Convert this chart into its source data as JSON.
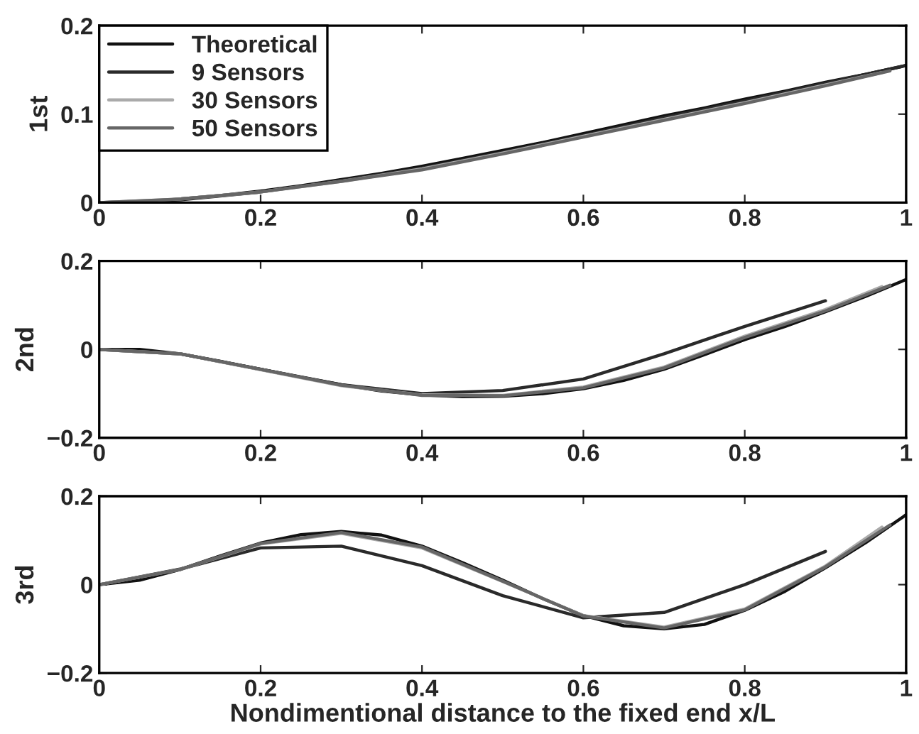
{
  "chart_data": [
    {
      "type": "line",
      "ylabel": "1st",
      "xlim": [
        0,
        1
      ],
      "ylim": [
        0,
        0.2
      ],
      "xticks": [
        0,
        0.2,
        0.4,
        0.6,
        0.8,
        1
      ],
      "yticks": [
        0,
        0.1,
        0.2
      ],
      "legend": "top left",
      "grid": false,
      "series": [
        {
          "name": "Theoretical",
          "color": "#111111",
          "x": [
            0,
            0.05,
            0.1,
            0.15,
            0.2,
            0.25,
            0.3,
            0.35,
            0.4,
            0.45,
            0.5,
            0.55,
            0.6,
            0.65,
            0.7,
            0.75,
            0.8,
            0.85,
            0.9,
            0.95,
            1
          ],
          "values": [
            0,
            0.001,
            0.004,
            0.008,
            0.013,
            0.019,
            0.026,
            0.033,
            0.041,
            0.05,
            0.059,
            0.068,
            0.078,
            0.088,
            0.098,
            0.107,
            0.117,
            0.126,
            0.136,
            0.145,
            0.155
          ]
        },
        {
          "name": "9 Sensors",
          "color": "#2a2a2a",
          "x": [
            0,
            0.1,
            0.2,
            0.3,
            0.4,
            0.5,
            0.6,
            0.7,
            0.8,
            0.9,
            1
          ],
          "values": [
            0,
            0.003,
            0.012,
            0.025,
            0.039,
            0.057,
            0.076,
            0.096,
            0.115,
            0.135,
            0.155
          ]
        },
        {
          "name": "30 Sensors",
          "color": "#aaaaaa",
          "x": [
            0,
            0.1,
            0.2,
            0.3,
            0.4,
            0.5,
            0.6,
            0.7,
            0.8,
            0.9,
            0.97
          ],
          "values": [
            0,
            0.004,
            0.012,
            0.024,
            0.038,
            0.056,
            0.075,
            0.094,
            0.113,
            0.133,
            0.147
          ]
        },
        {
          "name": "50 Sensors",
          "color": "#666666",
          "x": [
            0,
            0.1,
            0.2,
            0.3,
            0.4,
            0.5,
            0.6,
            0.7,
            0.8,
            0.9,
            0.98
          ],
          "values": [
            0,
            0.004,
            0.012,
            0.024,
            0.037,
            0.055,
            0.074,
            0.093,
            0.112,
            0.132,
            0.149
          ]
        }
      ]
    },
    {
      "type": "line",
      "ylabel": "2nd",
      "xlim": [
        0,
        1
      ],
      "ylim": [
        -0.2,
        0.2
      ],
      "xticks": [
        0,
        0.2,
        0.4,
        0.6,
        0.8,
        1
      ],
      "yticks": [
        {
          "value": -0.2,
          "label": "−0.2"
        },
        0,
        0.2
      ],
      "grid": false,
      "series": [
        {
          "color": "#111111",
          "x": [
            0,
            0.05,
            0.1,
            0.15,
            0.2,
            0.25,
            0.3,
            0.35,
            0.4,
            0.45,
            0.5,
            0.55,
            0.6,
            0.65,
            0.7,
            0.75,
            0.8,
            0.85,
            0.9,
            0.95,
            1
          ],
          "values": [
            0,
            0,
            -0.01,
            -0.027,
            -0.045,
            -0.063,
            -0.08,
            -0.094,
            -0.103,
            -0.107,
            -0.106,
            -0.1,
            -0.089,
            -0.07,
            -0.045,
            -0.012,
            0.022,
            0.052,
            0.085,
            0.12,
            0.158
          ]
        },
        {
          "color": "#2a2a2a",
          "x": [
            0,
            0.1,
            0.2,
            0.3,
            0.4,
            0.5,
            0.6,
            0.7,
            0.8,
            0.9
          ],
          "values": [
            0,
            -0.01,
            -0.045,
            -0.08,
            -0.1,
            -0.093,
            -0.067,
            -0.01,
            0.052,
            0.11
          ]
        },
        {
          "color": "#aaaaaa",
          "x": [
            0,
            0.1,
            0.2,
            0.3,
            0.4,
            0.5,
            0.6,
            0.7,
            0.8,
            0.9,
            0.97
          ],
          "values": [
            0,
            -0.01,
            -0.046,
            -0.082,
            -0.103,
            -0.104,
            -0.085,
            -0.04,
            0.03,
            0.09,
            0.142
          ]
        },
        {
          "color": "#666666",
          "x": [
            0,
            0.1,
            0.2,
            0.3,
            0.4,
            0.5,
            0.6,
            0.7,
            0.8,
            0.9,
            0.98
          ],
          "values": [
            0,
            -0.01,
            -0.045,
            -0.081,
            -0.104,
            -0.105,
            -0.087,
            -0.042,
            0.027,
            0.087,
            0.145
          ]
        }
      ]
    },
    {
      "type": "line",
      "ylabel": "3rd",
      "xlabel": "Nondimentional distance to the fixed end x/L",
      "xlim": [
        0,
        1
      ],
      "ylim": [
        -0.2,
        0.2
      ],
      "xticks": [
        0,
        0.2,
        0.4,
        0.6,
        0.8,
        1
      ],
      "yticks": [
        {
          "value": -0.2,
          "label": "−0.2"
        },
        0,
        0.2
      ],
      "grid": false,
      "series": [
        {
          "color": "#111111",
          "x": [
            0,
            0.05,
            0.1,
            0.15,
            0.2,
            0.25,
            0.3,
            0.35,
            0.4,
            0.45,
            0.5,
            0.55,
            0.6,
            0.65,
            0.7,
            0.75,
            0.8,
            0.85,
            0.9,
            0.95,
            1
          ],
          "values": [
            0,
            0.01,
            0.034,
            0.065,
            0.094,
            0.113,
            0.12,
            0.112,
            0.087,
            0.05,
            0.01,
            -0.032,
            -0.07,
            -0.093,
            -0.1,
            -0.09,
            -0.058,
            -0.015,
            0.038,
            0.095,
            0.158
          ]
        },
        {
          "color": "#2a2a2a",
          "x": [
            0,
            0.1,
            0.2,
            0.3,
            0.4,
            0.5,
            0.6,
            0.7,
            0.8,
            0.9
          ],
          "values": [
            0,
            0.035,
            0.083,
            0.087,
            0.043,
            -0.025,
            -0.075,
            -0.063,
            0,
            0.075
          ]
        },
        {
          "color": "#aaaaaa",
          "x": [
            0,
            0.1,
            0.2,
            0.3,
            0.4,
            0.5,
            0.6,
            0.7,
            0.8,
            0.9,
            0.97
          ],
          "values": [
            0,
            0.034,
            0.092,
            0.116,
            0.083,
            0.007,
            -0.07,
            -0.096,
            -0.055,
            0.042,
            0.13
          ]
        },
        {
          "color": "#666666",
          "x": [
            0,
            0.1,
            0.2,
            0.3,
            0.4,
            0.5,
            0.6,
            0.7,
            0.8,
            0.9,
            0.98
          ],
          "values": [
            0,
            0.034,
            0.093,
            0.118,
            0.085,
            0.008,
            -0.071,
            -0.098,
            -0.057,
            0.04,
            0.135
          ]
        }
      ]
    }
  ]
}
